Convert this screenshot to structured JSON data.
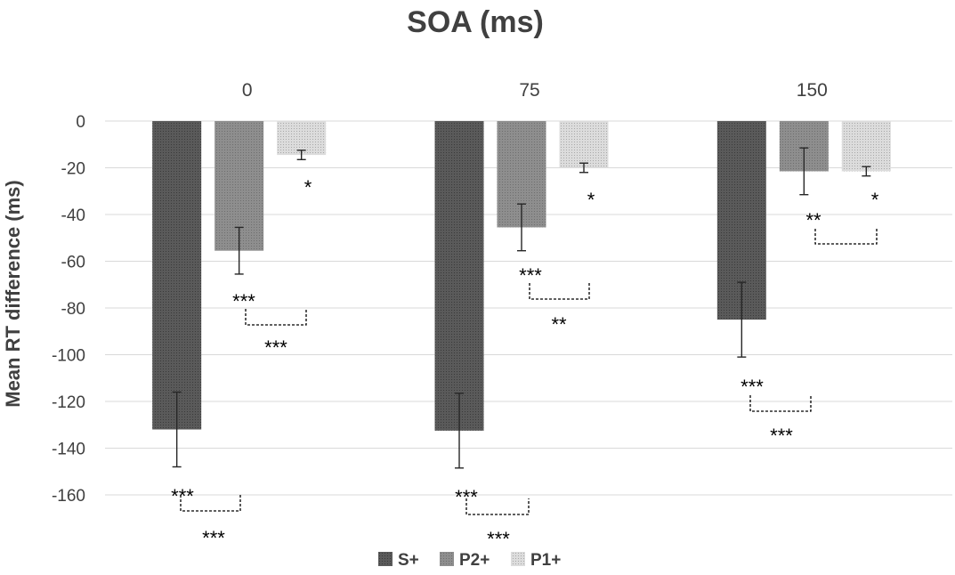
{
  "chart_data": {
    "type": "bar",
    "title": "SOA (ms)",
    "xlabel": "",
    "ylabel": "Mean RT difference (ms)",
    "ylim": [
      -160,
      0
    ],
    "yticks": [
      0,
      -20,
      -40,
      -60,
      -80,
      -100,
      -120,
      -140,
      -160
    ],
    "ytick_labels": [
      "0",
      "-20",
      "-40",
      "-60",
      "-80",
      "-100",
      "-120",
      "-140",
      "-160"
    ],
    "categories": [
      "0",
      "75",
      "150"
    ],
    "series": [
      {
        "name": "S+",
        "color": "#595959",
        "values": [
          -132,
          -132.5,
          -85
        ],
        "errors": [
          16,
          16,
          16
        ]
      },
      {
        "name": "P2+",
        "color": "#8c8c8c",
        "values": [
          -55.5,
          -45.5,
          -21.5
        ],
        "errors": [
          10,
          10,
          10
        ]
      },
      {
        "name": "P1+",
        "color": "#d4d4d4",
        "values": [
          -14.5,
          -20,
          -21.5
        ],
        "errors": [
          2,
          2,
          2
        ]
      }
    ],
    "legend_position": "bottom",
    "grid": true,
    "annotations": [
      {
        "group": 0,
        "series_mark": "***",
        "series_mark2": "***",
        "p1_mark": "*"
      },
      {
        "group": 1,
        "series_mark": "***",
        "series_mark2": "**",
        "p1_mark": "*"
      },
      {
        "group": 2,
        "series_mark": "***",
        "series_mark2": "***",
        "p2_mark": "**",
        "p1_mark": "*"
      }
    ],
    "annotation_labels": {
      "g0_s_top": "***",
      "g0_s_bottom": "***",
      "g0_p2_top": "***",
      "g0_p2_bottom": "***",
      "g0_p1": "*",
      "g1_s_top": "***",
      "g1_s_bottom": "***",
      "g1_p2_top": "***",
      "g1_p2_bottom": "**",
      "g1_p1": "*",
      "g2_s_top": "***",
      "g2_s_bottom": "***",
      "g2_p2_top": "**",
      "g2_p1": "*"
    }
  }
}
